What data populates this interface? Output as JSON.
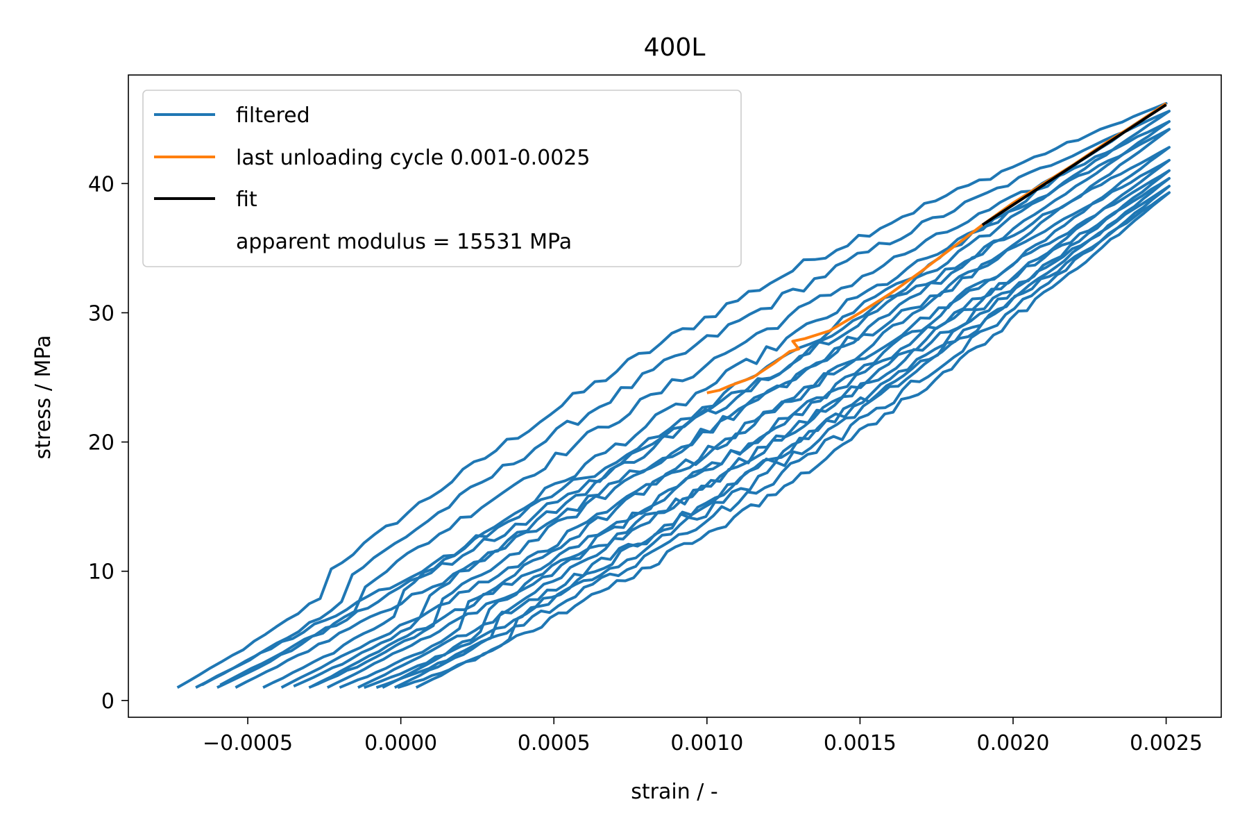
{
  "chart_data": {
    "type": "line",
    "title": "400L",
    "xlabel": "strain / -",
    "ylabel": "stress / MPa",
    "xlim": [
      -0.00089,
      0.00268
    ],
    "ylim": [
      -1.3,
      48.4
    ],
    "x_ticks": [
      -0.0005,
      0.0,
      0.0005,
      0.001,
      0.0015,
      0.002,
      0.0025
    ],
    "x_tick_labels": [
      "−0.0005",
      "0.0000",
      "0.0005",
      "0.0010",
      "0.0015",
      "0.0020",
      "0.0025"
    ],
    "y_ticks": [
      0,
      10,
      20,
      30,
      40
    ],
    "y_tick_labels": [
      "0",
      "10",
      "20",
      "30",
      "40"
    ],
    "grid": false,
    "legend_position": "top-left",
    "legend": [
      {
        "label": "filtered",
        "color": "#1f77b4",
        "kind": "line"
      },
      {
        "label": "last unloading cycle 0.001-0.0025",
        "color": "#ff7f0e",
        "kind": "line"
      },
      {
        "label": "fit",
        "color": "#000000",
        "kind": "line"
      },
      {
        "label": "apparent modulus = 15531 MPa",
        "color": "none",
        "kind": "text"
      }
    ],
    "series": [
      {
        "name": "filtered",
        "color": "#1f77b4",
        "loops": [
          {
            "x0": -0.00073,
            "y0": 1.0,
            "x_top": 0.0025,
            "y_top": 46.2,
            "load_offset": 4.5,
            "unload_offset": -2.0
          },
          {
            "x0": -0.00065,
            "y0": 1.2,
            "x_top": 0.00251,
            "y_top": 45.6,
            "load_offset": 3.5,
            "unload_offset": -1.8
          },
          {
            "x0": -0.0006,
            "y0": 1.0,
            "x_top": 0.00251,
            "y_top": 44.8,
            "load_offset": 2.5,
            "unload_offset": -2.2
          },
          {
            "x0": -0.00045,
            "y0": 1.0,
            "x_top": 0.00251,
            "y_top": 44.2,
            "load_offset": 2.0,
            "unload_offset": -2.5
          },
          {
            "x0": -0.00035,
            "y0": 1.1,
            "x_top": 0.00251,
            "y_top": 42.8,
            "load_offset": 1.5,
            "unload_offset": -2.4
          },
          {
            "x0": -0.0003,
            "y0": 1.0,
            "x_top": 0.00251,
            "y_top": 41.8,
            "load_offset": 1.0,
            "unload_offset": -2.6
          },
          {
            "x0": -0.0002,
            "y0": 1.0,
            "x_top": 0.00251,
            "y_top": 41.0,
            "load_offset": 0.5,
            "unload_offset": -2.8
          },
          {
            "x0": -0.00012,
            "y0": 1.0,
            "x_top": 0.00251,
            "y_top": 40.4,
            "load_offset": 0.0,
            "unload_offset": -2.7
          },
          {
            "x0": -8e-05,
            "y0": 1.0,
            "x_top": 0.00251,
            "y_top": 39.8,
            "load_offset": -0.5,
            "unload_offset": -2.9
          },
          {
            "x0": -1e-05,
            "y0": 1.0,
            "x_top": 0.00251,
            "y_top": 39.3,
            "load_offset": -1.0,
            "unload_offset": -3.0
          }
        ]
      },
      {
        "name": "last unloading cycle 0.001-0.0025",
        "color": "#ff7f0e",
        "x": [
          0.0025,
          0.0024,
          0.0023,
          0.0022,
          0.0021,
          0.002,
          0.0019,
          0.0018,
          0.0017,
          0.0016,
          0.0015,
          0.0014,
          0.00132,
          0.00128,
          0.0013,
          0.00127,
          0.00122,
          0.00115,
          0.00108,
          0.00104,
          0.001
        ],
        "y": [
          46.2,
          44.6,
          43.1,
          41.5,
          40.0,
          38.5,
          36.8,
          35.0,
          33.2,
          31.5,
          30.0,
          28.6,
          28.0,
          27.8,
          27.2,
          27.0,
          26.1,
          25.0,
          24.4,
          24.0,
          23.8
        ]
      },
      {
        "name": "fit",
        "color": "#000000",
        "x": [
          0.0019,
          0.0025
        ],
        "y": [
          36.8,
          46.1
        ]
      }
    ]
  }
}
